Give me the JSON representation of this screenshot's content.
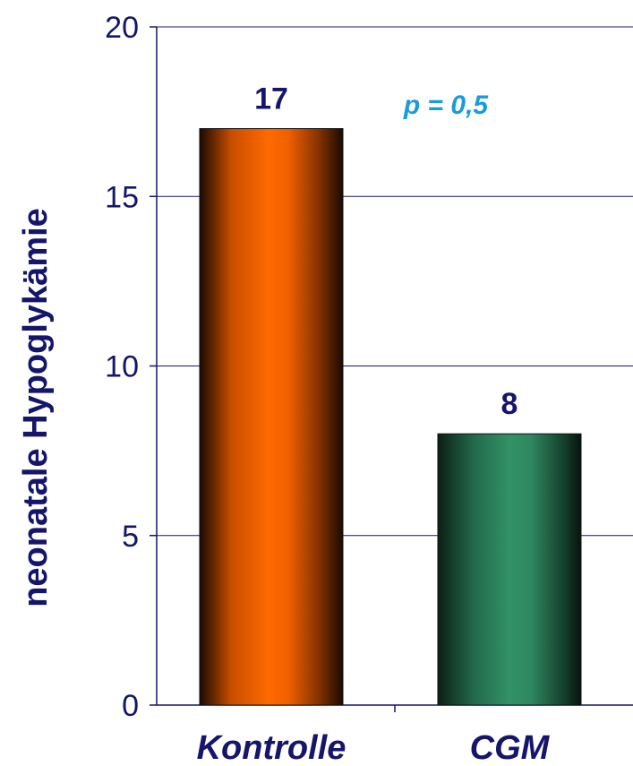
{
  "chart_data": {
    "type": "bar",
    "categories": [
      "Kontrolle",
      "CGM"
    ],
    "values": [
      17,
      8
    ],
    "data_labels": [
      "17",
      "8"
    ],
    "ylabel": "neonatale Hypoglykämie",
    "xlabel": "",
    "ylim": [
      0,
      20
    ],
    "yticks": [
      0,
      5,
      10,
      15,
      20
    ],
    "grid": true,
    "annotation": "p = 0,5",
    "colors": {
      "Kontrolle": "#ff6600",
      "CGM": "#2e8b63",
      "axis": "#15156b",
      "annotation": "#1a9cd8"
    }
  }
}
